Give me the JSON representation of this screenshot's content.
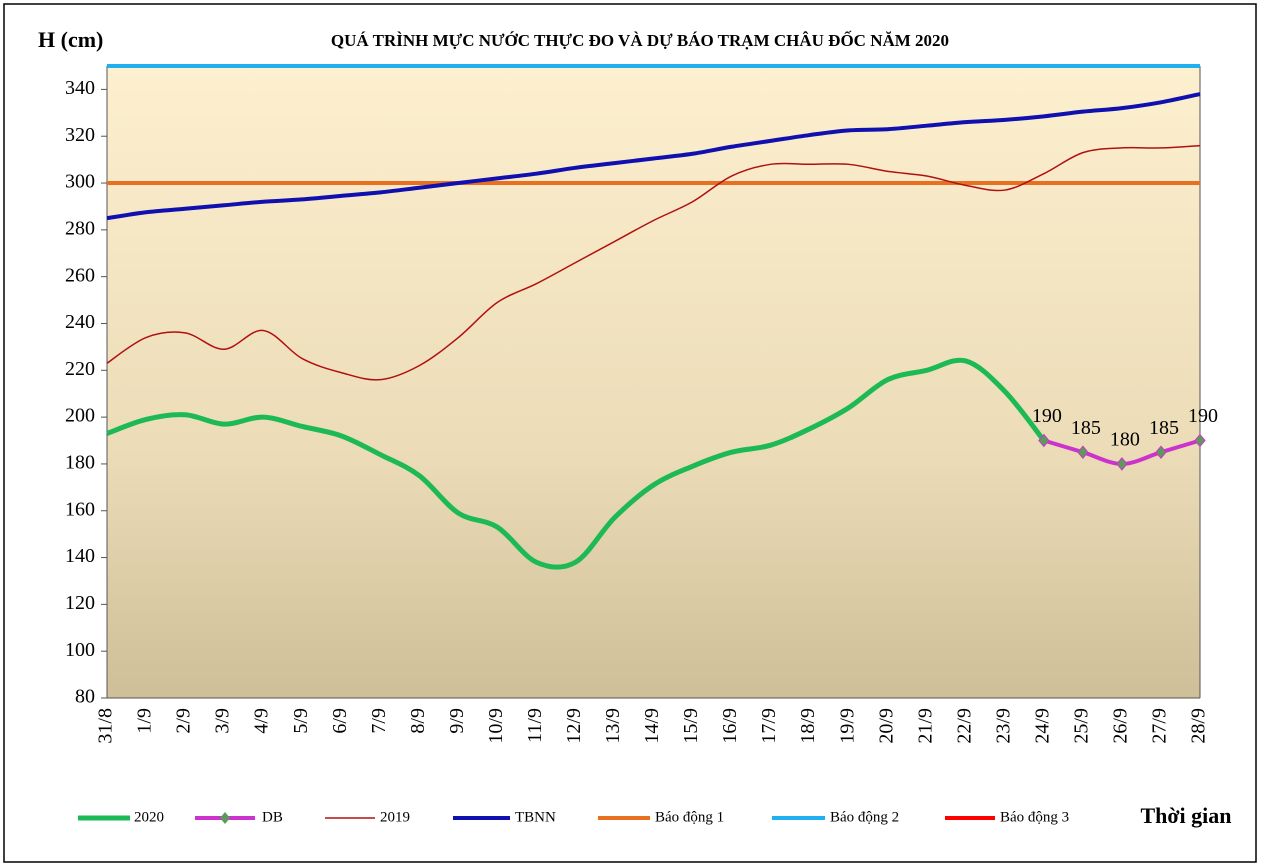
{
  "chart_data": {
    "type": "line",
    "title": "QUÁ TRÌNH MỰC NƯỚC THỰC ĐO VÀ DỰ BÁO TRẠM CHÂU ĐỐC NĂM 2020",
    "y_label": "H (cm)",
    "x_label": "Thời gian",
    "categories": [
      "31/8",
      "1/9",
      "2/9",
      "3/9",
      "4/9",
      "5/9",
      "6/9",
      "7/9",
      "8/9",
      "9/9",
      "10/9",
      "11/9",
      "12/9",
      "13/9",
      "14/9",
      "15/9",
      "16/9",
      "17/9",
      "18/9",
      "19/9",
      "20/9",
      "21/9",
      "22/9",
      "23/9",
      "24/9",
      "25/9",
      "26/9",
      "27/9",
      "28/9"
    ],
    "ylim": [
      80,
      350
    ],
    "yticks": [
      80,
      100,
      120,
      140,
      160,
      180,
      200,
      220,
      240,
      260,
      280,
      300,
      320,
      340
    ],
    "series": [
      {
        "name": "2020",
        "color": "#1db954",
        "width": 5,
        "values": [
          193,
          199,
          201,
          197,
          200,
          196,
          192,
          184,
          175,
          159,
          153,
          138,
          138,
          157,
          171,
          179,
          185,
          188,
          195,
          204,
          216,
          220,
          224,
          211,
          190,
          null,
          null,
          null,
          null
        ]
      },
      {
        "name": "DB",
        "color": "#cc33cc",
        "width": 4,
        "markers": true,
        "data_labels": true,
        "values": [
          null,
          null,
          null,
          null,
          null,
          null,
          null,
          null,
          null,
          null,
          null,
          null,
          null,
          null,
          null,
          null,
          null,
          null,
          null,
          null,
          null,
          null,
          null,
          null,
          190,
          185,
          180,
          185,
          190
        ]
      },
      {
        "name": "2019",
        "color": "#b01010",
        "width": 1.5,
        "values": [
          223,
          234,
          236,
          229,
          237,
          225,
          219,
          216,
          222,
          234,
          249,
          257,
          266,
          275,
          284,
          292,
          303,
          308,
          308,
          308,
          305,
          303,
          299,
          297,
          304,
          313,
          315,
          315,
          316
        ]
      },
      {
        "name": "TBNN",
        "color": "#1010b0",
        "width": 4,
        "values": [
          285,
          287.5,
          289,
          290.5,
          292,
          293,
          294.5,
          296,
          298,
          300,
          302,
          304,
          306.5,
          308.5,
          310.5,
          312.5,
          315.5,
          318,
          320.5,
          322.5,
          323,
          324.5,
          326,
          327,
          328.5,
          330.5,
          332,
          334.5,
          338
        ]
      },
      {
        "name": "Báo động 1",
        "color": "#e87020",
        "width": 4,
        "values": [
          300,
          300,
          300,
          300,
          300,
          300,
          300,
          300,
          300,
          300,
          300,
          300,
          300,
          300,
          300,
          300,
          300,
          300,
          300,
          300,
          300,
          300,
          300,
          300,
          300,
          300,
          300,
          300,
          300
        ]
      },
      {
        "name": "Báo động 2",
        "color": "#20b0f0",
        "width": 4,
        "values": [
          350,
          350,
          350,
          350,
          350,
          350,
          350,
          350,
          350,
          350,
          350,
          350,
          350,
          350,
          350,
          350,
          350,
          350,
          350,
          350,
          350,
          350,
          350,
          350,
          350,
          350,
          350,
          350,
          350
        ]
      },
      {
        "name": "Báo động 3",
        "color": "#ff0000",
        "width": 4,
        "values": [
          null,
          null,
          null,
          null,
          null,
          null,
          null,
          null,
          null,
          null,
          null,
          null,
          null,
          null,
          null,
          null,
          null,
          null,
          null,
          null,
          null,
          null,
          null,
          null,
          null,
          null,
          null,
          null,
          null
        ]
      }
    ]
  }
}
